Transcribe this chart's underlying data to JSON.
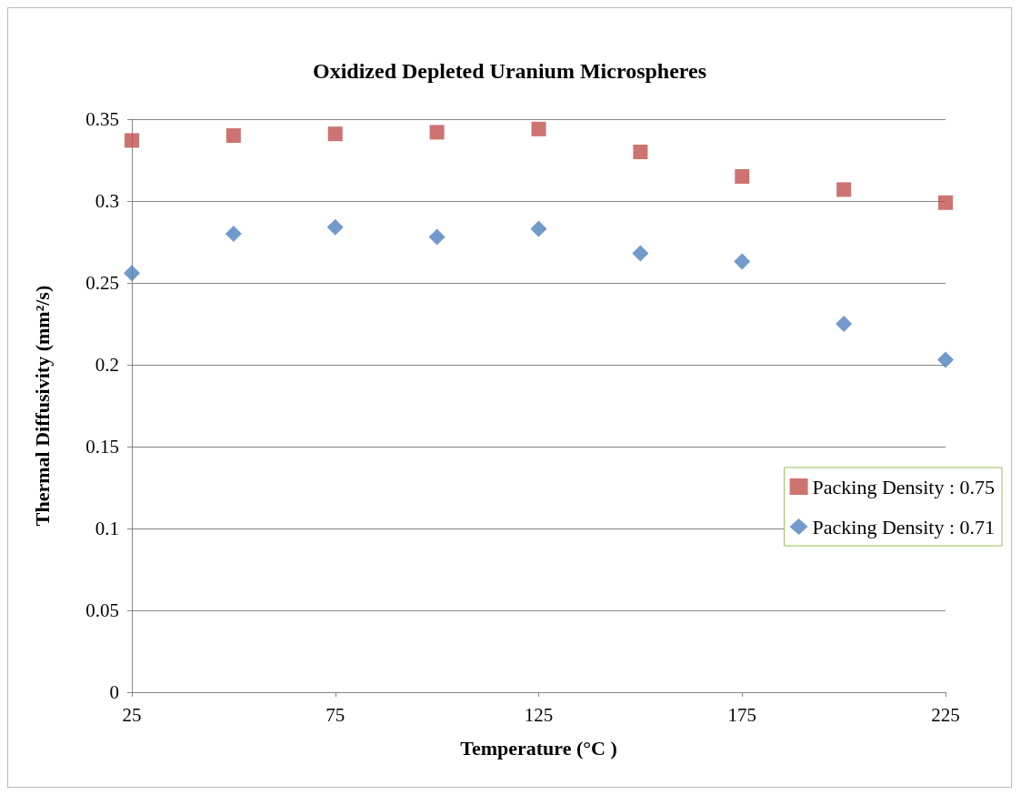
{
  "chart_data": {
    "type": "scatter",
    "title": "Oxidized Depleted Uranium Microspheres",
    "xlabel": "Temperature (°C )",
    "ylabel": "Thermal Diffusivity (mm²/s)",
    "x": [
      25,
      50,
      75,
      100,
      125,
      150,
      175,
      200,
      225
    ],
    "series": [
      {
        "name": "Packing Density : 0.75",
        "color": "#c0504d",
        "marker": "square",
        "values": [
          0.337,
          0.34,
          0.341,
          0.342,
          0.344,
          0.33,
          0.315,
          0.307,
          0.299
        ]
      },
      {
        "name": "Packing Density : 0.71",
        "color": "#4f81bd",
        "marker": "diamond",
        "values": [
          0.256,
          0.28,
          0.284,
          0.278,
          0.283,
          0.268,
          0.263,
          0.225,
          0.203
        ]
      }
    ],
    "xlim": [
      25,
      225
    ],
    "xticks": [
      25,
      75,
      125,
      175,
      225
    ],
    "ylim": [
      0,
      0.35
    ],
    "yticks": [
      0,
      0.05,
      0.1,
      0.15,
      0.2,
      0.25,
      0.3,
      0.35
    ],
    "grid": "y",
    "legend": "right"
  }
}
